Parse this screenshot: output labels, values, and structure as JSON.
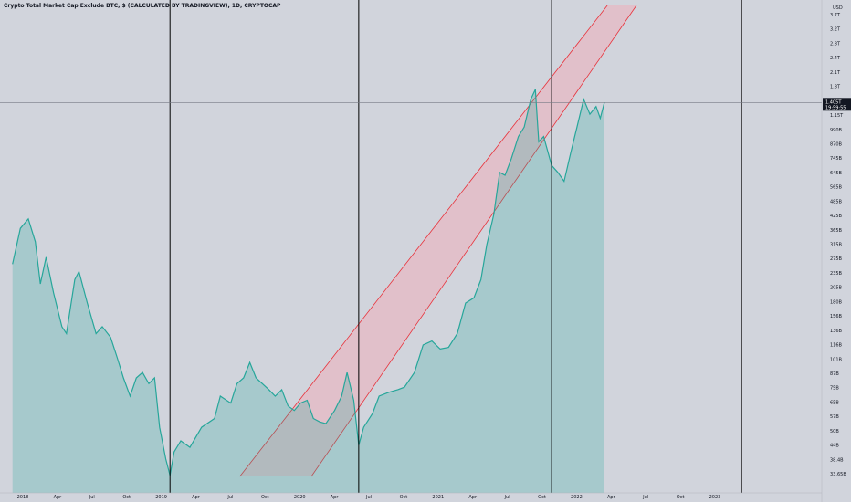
{
  "chart_data": {
    "type": "area",
    "title": "Crypto Total Market Cap Exclude BTC, $ (CALCULATED BY TRADINGVIEW), 1D, CRYPTOCAP",
    "currency_label": "USD",
    "last_price": "1.405T",
    "countdown": "19:59:55",
    "y_ticks": [
      "3.7T",
      "3.2T",
      "2.8T",
      "2.4T",
      "2.1T",
      "1.8T",
      "1.55T",
      "1.15T",
      "990B",
      "870B",
      "745B",
      "645B",
      "565B",
      "485B",
      "425B",
      "365B",
      "315B",
      "275B",
      "235B",
      "205B",
      "180B",
      "156B",
      "136B",
      "116B",
      "101B",
      "87B",
      "75B",
      "65B",
      "57B",
      "50B",
      "44B",
      "38.4B",
      "33.65B"
    ],
    "x_ticks": [
      "2018",
      "Apr",
      "Jul",
      "Oct",
      "2019",
      "Apr",
      "Jul",
      "Oct",
      "2020",
      "Apr",
      "Jul",
      "Oct",
      "2021",
      "Apr",
      "Jul",
      "Oct",
      "2022",
      "Apr",
      "Jul",
      "Oct",
      "2023"
    ],
    "series": [
      {
        "values": [
          [
            "2017-12-01",
            280
          ],
          [
            "2017-12-20",
            400
          ],
          [
            "2018-01-08",
            440
          ],
          [
            "2018-01-25",
            350
          ],
          [
            "2018-02-06",
            230
          ],
          [
            "2018-02-20",
            300
          ],
          [
            "2018-03-10",
            210
          ],
          [
            "2018-03-30",
            150
          ],
          [
            "2018-04-10",
            140
          ],
          [
            "2018-04-30",
            240
          ],
          [
            "2018-05-10",
            260
          ],
          [
            "2018-05-30",
            190
          ],
          [
            "2018-06-20",
            140
          ],
          [
            "2018-07-05",
            150
          ],
          [
            "2018-07-25",
            135
          ],
          [
            "2018-08-10",
            110
          ],
          [
            "2018-08-25",
            90
          ],
          [
            "2018-09-10",
            75
          ],
          [
            "2018-09-25",
            90
          ],
          [
            "2018-10-10",
            95
          ],
          [
            "2018-10-25",
            85
          ],
          [
            "2018-11-08",
            90
          ],
          [
            "2018-11-20",
            55
          ],
          [
            "2018-12-05",
            40
          ],
          [
            "2018-12-15",
            34
          ],
          [
            "2018-12-25",
            43
          ],
          [
            "2019-01-10",
            48
          ],
          [
            "2019-02-01",
            45
          ],
          [
            "2019-03-01",
            55
          ],
          [
            "2019-04-01",
            60
          ],
          [
            "2019-04-15",
            75
          ],
          [
            "2019-05-10",
            70
          ],
          [
            "2019-05-25",
            85
          ],
          [
            "2019-06-10",
            90
          ],
          [
            "2019-06-25",
            105
          ],
          [
            "2019-07-10",
            90
          ],
          [
            "2019-07-25",
            85
          ],
          [
            "2019-08-10",
            80
          ],
          [
            "2019-08-25",
            75
          ],
          [
            "2019-09-10",
            80
          ],
          [
            "2019-09-25",
            68
          ],
          [
            "2019-10-10",
            65
          ],
          [
            "2019-10-25",
            70
          ],
          [
            "2019-11-10",
            72
          ],
          [
            "2019-11-25",
            60
          ],
          [
            "2019-12-10",
            58
          ],
          [
            "2019-12-25",
            57
          ],
          [
            "2020-01-15",
            65
          ],
          [
            "2020-02-01",
            75
          ],
          [
            "2020-02-14",
            95
          ],
          [
            "2020-03-01",
            72
          ],
          [
            "2020-03-13",
            46
          ],
          [
            "2020-03-25",
            55
          ],
          [
            "2020-04-15",
            63
          ],
          [
            "2020-05-01",
            75
          ],
          [
            "2020-05-25",
            78
          ],
          [
            "2020-06-15",
            80
          ],
          [
            "2020-07-01",
            82
          ],
          [
            "2020-07-25",
            95
          ],
          [
            "2020-08-15",
            125
          ],
          [
            "2020-09-05",
            130
          ],
          [
            "2020-09-25",
            120
          ],
          [
            "2020-10-15",
            122
          ],
          [
            "2020-11-05",
            140
          ],
          [
            "2020-11-25",
            190
          ],
          [
            "2020-12-15",
            200
          ],
          [
            "2021-01-01",
            240
          ],
          [
            "2021-01-15",
            340
          ],
          [
            "2021-02-01",
            460
          ],
          [
            "2021-02-15",
            700
          ],
          [
            "2021-02-28",
            680
          ],
          [
            "2021-03-15",
            800
          ],
          [
            "2021-04-01",
            1000
          ],
          [
            "2021-04-15",
            1100
          ],
          [
            "2021-05-01",
            1450
          ],
          [
            "2021-05-12",
            1600
          ],
          [
            "2021-05-20",
            950
          ],
          [
            "2021-06-01",
            1000
          ],
          [
            "2021-06-20",
            750
          ],
          [
            "2021-07-05",
            700
          ],
          [
            "2021-07-20",
            640
          ],
          [
            "2021-08-05",
            850
          ],
          [
            "2021-08-20",
            1100
          ],
          [
            "2021-09-05",
            1450
          ],
          [
            "2021-09-20",
            1250
          ],
          [
            "2021-10-05",
            1350
          ],
          [
            "2021-10-15",
            1200
          ],
          [
            "2021-10-25",
            1405
          ]
        ]
      }
    ],
    "channel": {
      "upper_line": [
        [
          "2019-06-01",
          33.65
        ],
        [
          "2021-11-01",
          3700
        ]
      ],
      "lower_line": [
        [
          "2019-11-20",
          33.65
        ],
        [
          "2022-01-10",
          3700
        ]
      ],
      "fill": "#f4a8b4",
      "stroke": "#e8313a"
    },
    "vertical_lines": [
      "2018-12-15",
      "2020-03-13",
      "2021-06-20",
      "2022-09-20"
    ],
    "colors": {
      "background": "#d1d4dc",
      "line": "#26a69a",
      "area": "#26a69a",
      "crosshair": "#787b86",
      "price_tag": "#131722"
    },
    "ylim": [
      33.65,
      3700
    ],
    "y_scale": "log",
    "xlim": [
      "2017-11-01",
      "2023-04-01"
    ]
  }
}
